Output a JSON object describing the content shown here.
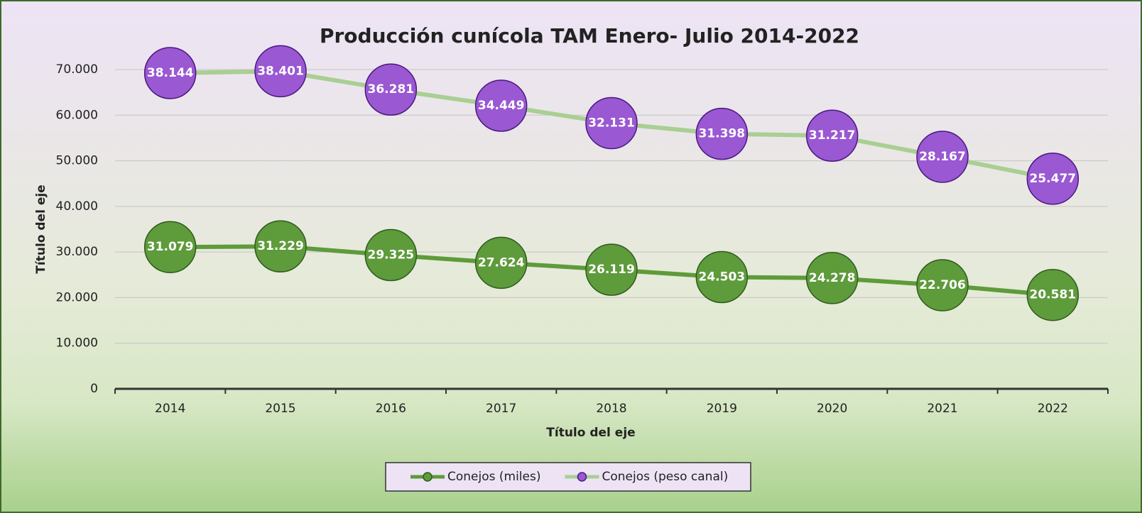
{
  "chart_data": {
    "type": "line",
    "stacked": true,
    "title": "Producción cunícola TAM Enero- Julio 2014-2022",
    "x_label": "Título del eje",
    "y_label": "Título del eje",
    "categories": [
      "2014",
      "2015",
      "2016",
      "2017",
      "2018",
      "2019",
      "2020",
      "2021",
      "2022"
    ],
    "series": [
      {
        "name": "Conejos (miles)",
        "color": "#5e9b3b",
        "line_color": "#5e9b3b",
        "marker_edge": "#2f5a1d",
        "values": [
          31079,
          31229,
          29325,
          27624,
          26119,
          24503,
          24278,
          22706,
          20581
        ],
        "value_labels": [
          "31.079",
          "31.229",
          "29.325",
          "27.624",
          "26.119",
          "24.503",
          "24.278",
          "22.706",
          "20.581"
        ]
      },
      {
        "name": "Conejos (peso canal)",
        "color": "#9a58d2",
        "line_color": "#a9cf93",
        "marker_edge": "#4a1880",
        "values": [
          38144,
          38401,
          36281,
          34449,
          32131,
          31398,
          31217,
          28167,
          25477
        ],
        "value_labels": [
          "38.144",
          "38.401",
          "36.281",
          "34.449",
          "32.131",
          "31.398",
          "31.217",
          "28.167",
          "25.477"
        ]
      }
    ],
    "ylim": [
      0,
      70000
    ],
    "yticks": [
      0,
      {
        "value": 10000,
        "label": "10.000"
      },
      {
        "value": 20000,
        "label": "20.000"
      },
      {
        "value": 30000,
        "label": "30.000"
      },
      {
        "value": 40000,
        "label": "40.000"
      },
      {
        "value": 50000,
        "label": "50.000"
      },
      {
        "value": 60000,
        "label": "60.000"
      },
      {
        "value": 70000,
        "label": "70.000"
      }
    ],
    "grid": true,
    "legend": "bottom"
  }
}
